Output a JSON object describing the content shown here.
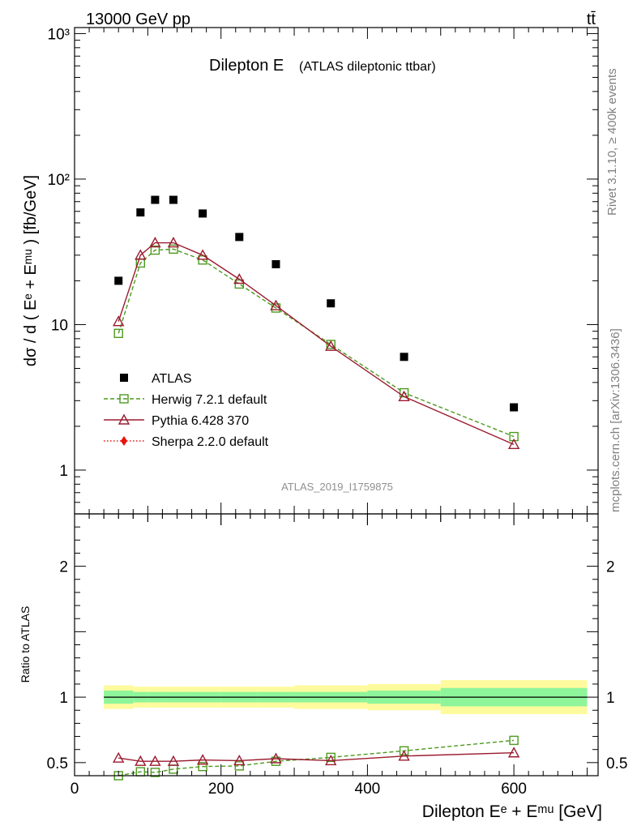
{
  "header": {
    "left": "13000 GeV pp",
    "right": "tt̄"
  },
  "side": {
    "rivet": "Rivet 3.1.10, ≥ 400k events",
    "mcplots": "mcplots.cern.ch [arXiv:1306.3436]"
  },
  "chart_data": {
    "type": "line",
    "title": "Dilepton E",
    "subtitle": "(ATLAS dileptonic ttbar)",
    "analysis_id": "ATLAS_2019_I1759875",
    "xlabel": "Dilepton Eᵉ + Eᵐᵘ [GeV]",
    "xlim": [
      0,
      715
    ],
    "x_ticks": [
      0,
      200,
      400,
      600
    ],
    "main": {
      "ylabel": "dσ / d ( Eᵉ + Eᵐᵘ ) [fb/GeV]",
      "yscale": "log",
      "ylim": [
        0.5,
        1100
      ],
      "y_ticks": [
        {
          "value": 1,
          "label": "1"
        },
        {
          "value": 10,
          "label": "10"
        },
        {
          "value": 100,
          "label": "10²"
        },
        {
          "value": 1000,
          "label": "10³"
        }
      ],
      "legend_position": "bottom-left",
      "series": [
        {
          "name": "ATLAS",
          "marker": "filled-square",
          "color": "#000000",
          "x": [
            60,
            90,
            110,
            135,
            175,
            225,
            275,
            350,
            450,
            600
          ],
          "y": [
            20,
            59,
            72,
            72,
            58,
            40,
            26,
            14,
            6,
            2.7
          ]
        },
        {
          "name": "Herwig 7.2.1 default",
          "marker": "open-square",
          "line": "dashed",
          "color": "#4d9a1f",
          "x": [
            60,
            90,
            110,
            135,
            175,
            225,
            275,
            350,
            450,
            600
          ],
          "y": [
            8.7,
            26.5,
            32.5,
            33,
            27.8,
            19,
            13,
            7.3,
            3.4,
            1.7
          ]
        },
        {
          "name": "Pythia 6.428 370",
          "marker": "open-triangle",
          "line": "solid",
          "color": "#9b1b30",
          "x": [
            60,
            90,
            110,
            135,
            175,
            225,
            275,
            350,
            450,
            600
          ],
          "y": [
            10.5,
            30,
            36.5,
            36.5,
            30,
            20.5,
            13.5,
            7.1,
            3.2,
            1.5
          ]
        },
        {
          "name": "Sherpa 2.2.0 default",
          "marker": "filled-diamond",
          "line": "dotted",
          "color": "#e8120c",
          "x": [],
          "y": []
        }
      ]
    },
    "ratio": {
      "ylabel": "Ratio to ATLAS",
      "ylim": [
        0.4,
        2.4
      ],
      "y_ticks": [
        {
          "value": 0.5,
          "label": "0.5"
        },
        {
          "value": 1,
          "label": "1"
        },
        {
          "value": 2,
          "label": "2"
        }
      ],
      "bands": [
        {
          "x0": 40,
          "x1": 80,
          "inner": 0.05,
          "outer": 0.09
        },
        {
          "x0": 80,
          "x1": 100,
          "inner": 0.04,
          "outer": 0.08
        },
        {
          "x0": 100,
          "x1": 120,
          "inner": 0.04,
          "outer": 0.08
        },
        {
          "x0": 120,
          "x1": 150,
          "inner": 0.04,
          "outer": 0.08
        },
        {
          "x0": 150,
          "x1": 200,
          "inner": 0.04,
          "outer": 0.08
        },
        {
          "x0": 200,
          "x1": 250,
          "inner": 0.04,
          "outer": 0.08
        },
        {
          "x0": 250,
          "x1": 300,
          "inner": 0.04,
          "outer": 0.08
        },
        {
          "x0": 300,
          "x1": 400,
          "inner": 0.04,
          "outer": 0.09
        },
        {
          "x0": 400,
          "x1": 500,
          "inner": 0.05,
          "outer": 0.1
        },
        {
          "x0": 500,
          "x1": 700,
          "inner": 0.07,
          "outer": 0.13
        }
      ],
      "band_colors": {
        "inner": "#8ef59a",
        "outer": "#fdfb9d"
      },
      "series": [
        {
          "name": "Herwig 7.2.1 default",
          "marker": "open-square",
          "line": "dashed",
          "color": "#4d9a1f",
          "x": [
            60,
            90,
            110,
            135,
            175,
            225,
            275,
            350,
            450,
            600
          ],
          "y": [
            0.4,
            0.43,
            0.425,
            0.45,
            0.47,
            0.475,
            0.51,
            0.54,
            0.59,
            0.67
          ]
        },
        {
          "name": "Pythia 6.428 370",
          "marker": "open-triangle",
          "line": "solid",
          "color": "#9b1b30",
          "x": [
            60,
            90,
            110,
            135,
            175,
            225,
            275,
            350,
            450,
            600
          ],
          "y": [
            0.535,
            0.51,
            0.51,
            0.51,
            0.52,
            0.515,
            0.53,
            0.515,
            0.55,
            0.575
          ]
        }
      ]
    }
  }
}
